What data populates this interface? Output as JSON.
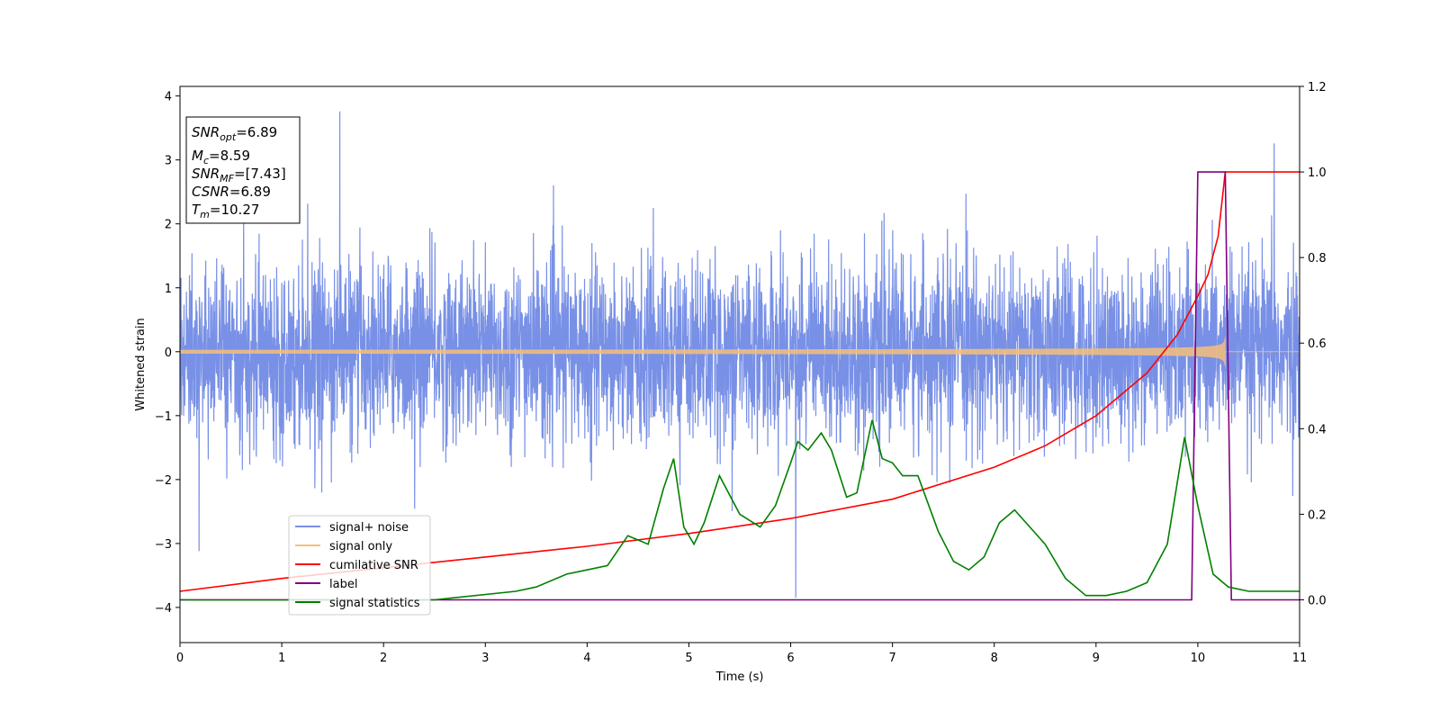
{
  "chart_data": {
    "type": "line",
    "xlabel": "Time (s)",
    "ylabel": "Whitened strain",
    "xlim": [
      0,
      11
    ],
    "ylim_left": [
      -4.55,
      4.15
    ],
    "ylim_right": [
      -0.1,
      1.2
    ],
    "x_ticks": [
      0,
      1,
      2,
      3,
      4,
      5,
      6,
      7,
      8,
      9,
      10,
      11
    ],
    "y_ticks_left": [
      -4,
      -3,
      -2,
      -1,
      0,
      1,
      2,
      3,
      4
    ],
    "y_tick_labels_left": [
      "−4",
      "−3",
      "−2",
      "−1",
      "0",
      "1",
      "2",
      "3",
      "4"
    ],
    "y_ticks_right": [
      0.0,
      0.2,
      0.4,
      0.6,
      0.8,
      1.0,
      1.2
    ],
    "y_tick_labels_right": [
      "0.0",
      "0.2",
      "0.4",
      "0.6",
      "0.8",
      "1.0",
      "1.2"
    ],
    "legend_position": "lower-left",
    "annotation": {
      "lines": [
        {
          "base": "SNR",
          "sub": "opt",
          "rest": "=6.89"
        },
        {
          "base": "M",
          "sub": "c",
          "rest": "=8.59"
        },
        {
          "base": "SNR",
          "sub": "MF",
          "rest": "=[7.43]"
        },
        {
          "base": "CSNR",
          "sub": "",
          "rest": "=6.89"
        },
        {
          "base": "T",
          "sub": "m",
          "rest": "=10.27"
        }
      ]
    },
    "series": [
      {
        "name": "signal+ noise",
        "axis": "left",
        "color": "#7890e6",
        "description": "whitened noise, amplitude approx ±1.5 with spikes up to 3.76 and down to -3.85"
      },
      {
        "name": "signal only",
        "axis": "left",
        "color": "#f5c07a",
        "chirp": {
          "t_start": 0,
          "t_merge": 10.27,
          "amp_start": 0.03,
          "amp_merge": 0.7
        }
      },
      {
        "name": "cumilative SNR",
        "axis": "right",
        "color": "#ff0000",
        "x": [
          0,
          1,
          2,
          3,
          4,
          5,
          6,
          7,
          8,
          8.5,
          9,
          9.5,
          9.8,
          10.0,
          10.1,
          10.2,
          10.27,
          11
        ],
        "y": [
          0.02,
          0.05,
          0.075,
          0.1,
          0.125,
          0.155,
          0.19,
          0.235,
          0.31,
          0.36,
          0.43,
          0.53,
          0.62,
          0.71,
          0.76,
          0.85,
          1.0,
          1.0
        ]
      },
      {
        "name": "label",
        "axis": "right",
        "color": "#800080",
        "x": [
          0,
          9.94,
          10.0,
          10.27,
          10.33,
          11
        ],
        "y": [
          0.0,
          0.0,
          1.0,
          1.0,
          0.0,
          0.0
        ]
      },
      {
        "name": "signal statistics",
        "axis": "right",
        "color": "#008000",
        "x": [
          0,
          2.5,
          3.3,
          3.5,
          3.8,
          4.0,
          4.2,
          4.4,
          4.6,
          4.75,
          4.85,
          4.95,
          5.05,
          5.15,
          5.3,
          5.5,
          5.7,
          5.85,
          6.0,
          6.07,
          6.17,
          6.3,
          6.4,
          6.55,
          6.65,
          6.8,
          6.9,
          7.0,
          7.1,
          7.25,
          7.45,
          7.6,
          7.75,
          7.9,
          8.05,
          8.2,
          8.35,
          8.5,
          8.7,
          8.9,
          9.1,
          9.3,
          9.5,
          9.7,
          9.87,
          10.0,
          10.15,
          10.3,
          10.5,
          11
        ],
        "y": [
          0.0,
          0.0,
          0.02,
          0.03,
          0.06,
          0.07,
          0.08,
          0.15,
          0.13,
          0.26,
          0.33,
          0.17,
          0.13,
          0.18,
          0.29,
          0.2,
          0.17,
          0.22,
          0.32,
          0.37,
          0.35,
          0.39,
          0.35,
          0.24,
          0.25,
          0.42,
          0.33,
          0.32,
          0.29,
          0.29,
          0.16,
          0.09,
          0.07,
          0.1,
          0.18,
          0.21,
          0.17,
          0.13,
          0.05,
          0.01,
          0.01,
          0.02,
          0.04,
          0.13,
          0.38,
          0.22,
          0.06,
          0.03,
          0.02,
          0.02
        ]
      }
    ]
  }
}
